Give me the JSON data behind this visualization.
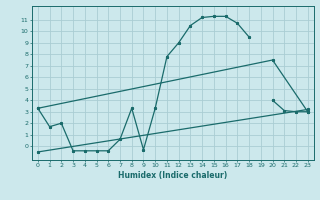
{
  "xlabel": "Humidex (Indice chaleur)",
  "bg_color": "#cce8ec",
  "grid_color": "#aacdd4",
  "line_color": "#1a6b6b",
  "xlim": [
    -0.5,
    23.5
  ],
  "ylim": [
    -1.2,
    12.2
  ],
  "x_ticks": [
    0,
    1,
    2,
    3,
    4,
    5,
    6,
    7,
    8,
    9,
    10,
    11,
    12,
    13,
    14,
    15,
    16,
    17,
    18,
    19,
    20,
    21,
    22,
    23
  ],
  "y_ticks": [
    0,
    1,
    2,
    3,
    4,
    5,
    6,
    7,
    8,
    9,
    10,
    11
  ],
  "line1_x": [
    0,
    1,
    2,
    3,
    4,
    5,
    6,
    7,
    8,
    9,
    10,
    11,
    12,
    13,
    14,
    15,
    16,
    17,
    18,
    19,
    20,
    21,
    22,
    23
  ],
  "line1_y": [
    3.3,
    1.7,
    2.0,
    -0.4,
    -0.4,
    -0.4,
    -0.4,
    0.6,
    3.3,
    -0.3,
    3.3,
    7.8,
    9.0,
    10.5,
    11.2,
    11.3,
    11.3,
    10.7,
    9.5,
    null,
    4.0,
    3.1,
    3.0,
    3.0
  ],
  "line2_x": [
    0,
    20,
    23
  ],
  "line2_y": [
    3.3,
    7.5,
    3.0
  ],
  "line3_x": [
    0,
    23
  ],
  "line3_y": [
    -0.5,
    3.2
  ]
}
